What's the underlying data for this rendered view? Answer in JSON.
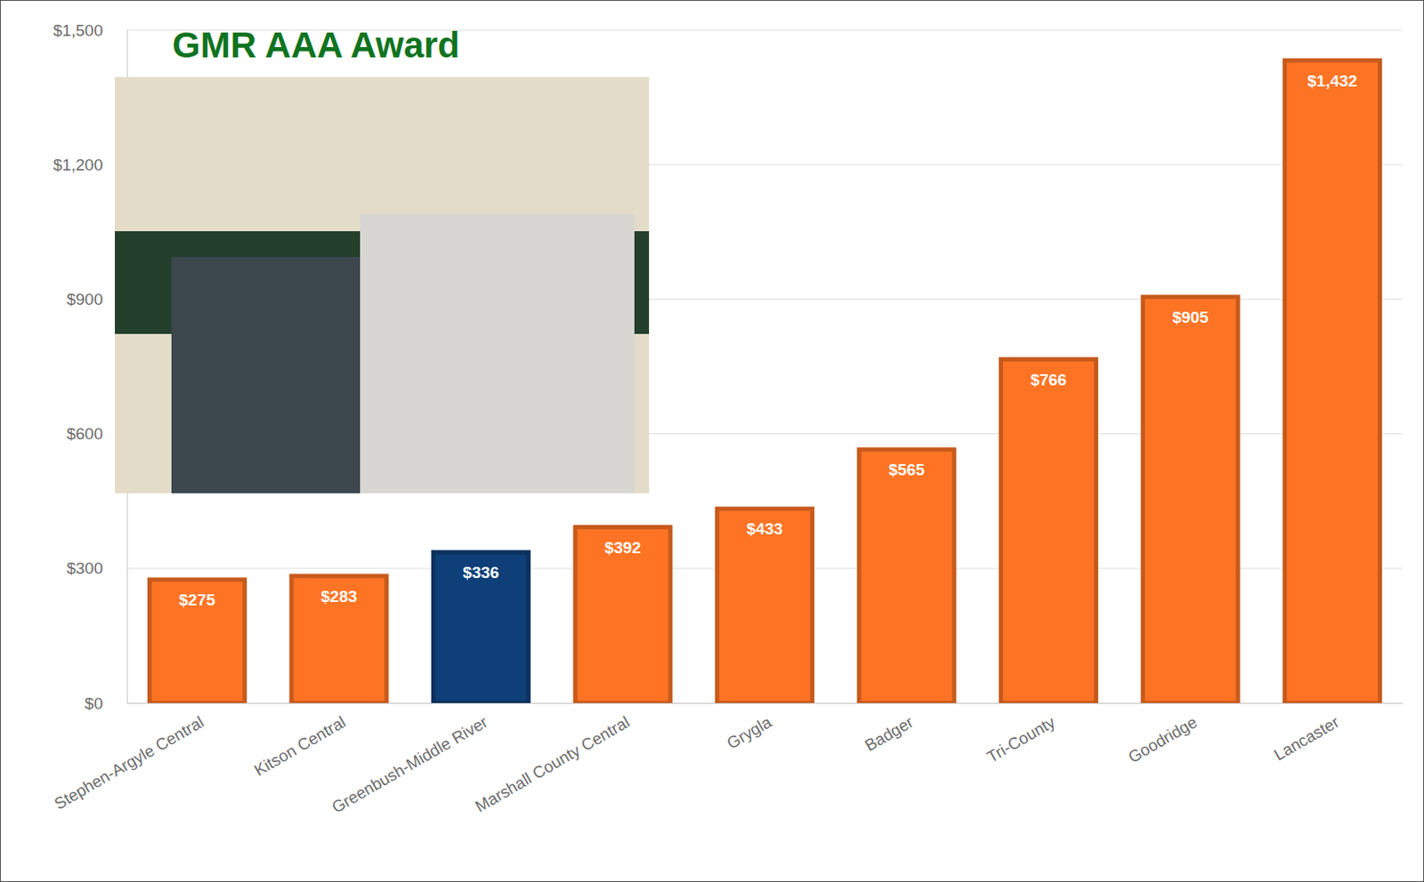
{
  "chart_data": {
    "type": "bar",
    "title": "GMR AAA Award",
    "categories": [
      "Stephen-Argyle Central",
      "Kitson Central",
      "Greenbush-Middle River",
      "Marshall County Central",
      "Grygla",
      "Badger",
      "Tri-County",
      "Goodridge",
      "Lancaster"
    ],
    "values": [
      275,
      283,
      336,
      392,
      433,
      565,
      766,
      905,
      1432
    ],
    "value_labels": [
      "$275",
      "$283",
      "$336",
      "$392",
      "$433",
      "$565",
      "$766",
      "$905",
      "$1,432"
    ],
    "colors": [
      "#ff7424",
      "#ff7424",
      "#0e3f78",
      "#ff7424",
      "#ff7424",
      "#ff7424",
      "#ff7424",
      "#ff7424",
      "#ff7424"
    ],
    "ylim": [
      0,
      1500
    ],
    "yticks": [
      {
        "value": 0,
        "label": "$0"
      },
      {
        "value": 300,
        "label": "$300"
      },
      {
        "value": 600,
        "label": "$600"
      },
      {
        "value": 900,
        "label": "$900"
      },
      {
        "value": 1200,
        "label": "$1,200"
      },
      {
        "value": 1500,
        "label": "$1,500"
      }
    ],
    "grid": true,
    "data_labels": true
  }
}
